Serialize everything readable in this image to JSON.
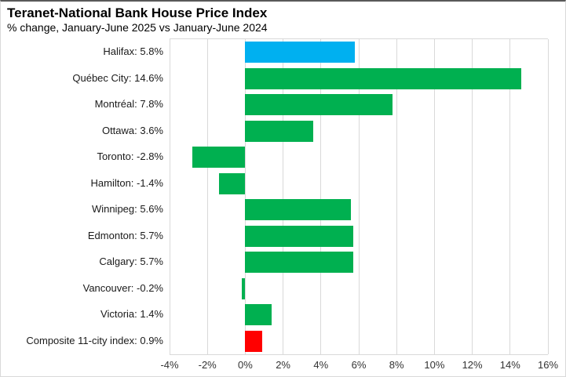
{
  "header": {
    "title": "Teranet-National Bank House Price Index",
    "subtitle": "% change, January-June 2025 vs January-June 2024"
  },
  "chart_data": {
    "type": "bar",
    "orientation": "horizontal",
    "title": "Teranet-National Bank House Price Index",
    "subtitle": "% change, January-June 2025 vs January-June 2024",
    "categories": [
      "Halifax",
      "Québec City",
      "Montréal",
      "Ottawa",
      "Toronto",
      "Hamilton",
      "Winnipeg",
      "Edmonton",
      "Calgary",
      "Vancouver",
      "Victoria",
      "Composite 11-city index"
    ],
    "values": [
      5.8,
      14.6,
      7.8,
      3.6,
      -2.8,
      -1.4,
      5.6,
      5.7,
      5.7,
      -0.2,
      1.4,
      0.9
    ],
    "labels": [
      "Halifax: 5.8%",
      "Québec City: 14.6%",
      "Montréal: 7.8%",
      "Ottawa: 3.6%",
      "Toronto: -2.8%",
      "Hamilton: -1.4%",
      "Winnipeg: 5.6%",
      "Edmonton: 5.7%",
      "Calgary: 5.7%",
      "Vancouver: -0.2%",
      "Victoria: 1.4%",
      "Composite 11-city index: 0.9%"
    ],
    "bar_colors": [
      "#00B0F0",
      "#00B050",
      "#00B050",
      "#00B050",
      "#00B050",
      "#00B050",
      "#00B050",
      "#00B050",
      "#00B050",
      "#00B050",
      "#00B050",
      "#FF0000"
    ],
    "x_ticks": [
      -4,
      -2,
      0,
      2,
      4,
      6,
      8,
      10,
      12,
      14,
      16
    ],
    "x_tick_labels": [
      "-4%",
      "-2%",
      "0%",
      "2%",
      "4%",
      "6%",
      "8%",
      "10%",
      "12%",
      "14%",
      "16%"
    ],
    "xlim": [
      -4,
      16
    ],
    "grid": "vertical",
    "legend": "none",
    "colors": {
      "highlight_blue": "#00B0F0",
      "positive_green": "#00B050",
      "composite_red": "#FF0000",
      "gridline": "#D9D9D9"
    }
  }
}
